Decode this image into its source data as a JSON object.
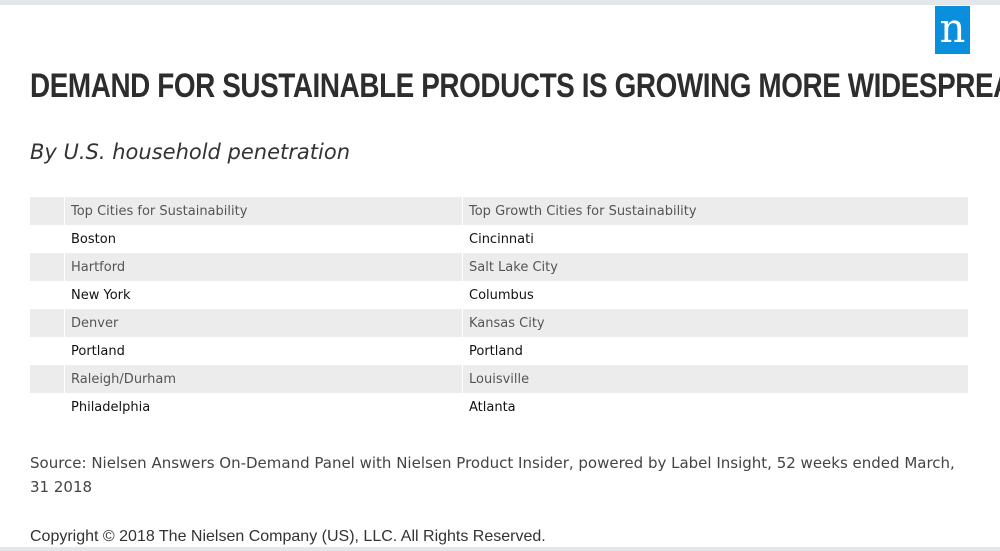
{
  "logo": {
    "text": "n",
    "color": "#0a8fdc"
  },
  "header": {
    "title": "DEMAND FOR SUSTAINABLE PRODUCTS IS GROWING MORE WIDESPREAD",
    "subtitle": "By U.S. household penetration"
  },
  "chart_data": {
    "type": "table",
    "columns": [
      "Top Cities for Sustainability",
      "Top Growth Cities for Sustainability"
    ],
    "rows": [
      [
        "Boston",
        "Cincinnati"
      ],
      [
        "Hartford",
        "Salt Lake City"
      ],
      [
        "New York",
        "Columbus"
      ],
      [
        "Denver",
        "Kansas City"
      ],
      [
        "Portland",
        "Portland"
      ],
      [
        "Raleigh/Durham",
        "Louisville"
      ],
      [
        "Philadelphia",
        "Atlanta"
      ]
    ],
    "header_color": "#1aa3db",
    "stripe_color": "#ececec"
  },
  "footer": {
    "source": "Source: Nielsen Answers On-Demand Panel with Nielsen Product Insider, powered by Label Insight, 52 weeks ended March, 31 2018",
    "copyright": "Copyright © 2018 The Nielsen Company (US), LLC. All Rights Reserved."
  }
}
